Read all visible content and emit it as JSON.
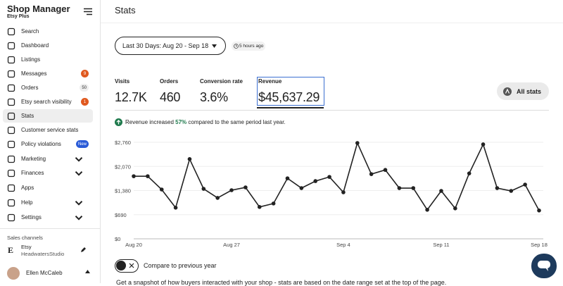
{
  "sidebar": {
    "title": "Shop Manager",
    "plan": "Etsy Plus",
    "nav": [
      {
        "label": "Search"
      },
      {
        "label": "Dashboard"
      },
      {
        "label": "Listings"
      },
      {
        "label": "Messages",
        "badge": "9"
      },
      {
        "label": "Orders",
        "badge": "50"
      },
      {
        "label": "Etsy search visibility",
        "badge": "1"
      },
      {
        "label": "Stats"
      },
      {
        "label": "Customer service stats"
      },
      {
        "label": "Policy violations",
        "badge": "New"
      },
      {
        "label": "Marketing"
      },
      {
        "label": "Finances"
      },
      {
        "label": "Apps"
      },
      {
        "label": "Help"
      },
      {
        "label": "Settings"
      }
    ],
    "sales_channels": {
      "heading": "Sales channels",
      "channel": "Etsy",
      "shop": "HeadwatersStudio"
    },
    "user": "Ellen McCaleb"
  },
  "header": {
    "title": "Stats"
  },
  "filters": {
    "date_range": "Last 30 Days: Aug 20 - Sep 18",
    "updated": "5 hours ago"
  },
  "metrics": [
    {
      "label": "Visits",
      "value": "12.7K"
    },
    {
      "label": "Orders",
      "value": "460"
    },
    {
      "label": "Conversion rate",
      "value": "3.6%"
    },
    {
      "label": "Revenue",
      "value": "$45,637.29"
    }
  ],
  "all_stats": "All stats",
  "insight": {
    "prefix": "Revenue increased ",
    "change": "57%",
    "suffix": " compared to the same period last year."
  },
  "chart_data": {
    "type": "line",
    "color": "#222222",
    "grid": true,
    "categories": [
      "Aug 20",
      null,
      null,
      null,
      null,
      null,
      null,
      "Aug 27",
      null,
      null,
      null,
      null,
      null,
      null,
      null,
      "Sep 4",
      null,
      null,
      null,
      null,
      null,
      null,
      "Sep 11",
      null,
      null,
      null,
      null,
      null,
      null,
      "Sep 18"
    ],
    "values": [
      1790,
      1790,
      1410,
      890,
      2280,
      1430,
      1170,
      1390,
      1470,
      910,
      1010,
      1730,
      1450,
      1650,
      1770,
      1330,
      2740,
      1850,
      1970,
      1450,
      1450,
      830,
      1370,
      870,
      1870,
      2700,
      1450,
      1370,
      1550,
      810
    ],
    "ylim": [
      0,
      2760
    ],
    "yticks": [
      {
        "value": 0,
        "label": "$0"
      },
      {
        "value": 690,
        "label": "$690"
      },
      {
        "value": 1380,
        "label": "$1,380"
      },
      {
        "value": 2070,
        "label": "$2,070"
      },
      {
        "value": 2760,
        "label": "$2,760"
      }
    ]
  },
  "compare": "Compare to previous year",
  "description": "Get a snapshot of how buyers interacted with your shop - stats are based on the date range set at the top of the page."
}
